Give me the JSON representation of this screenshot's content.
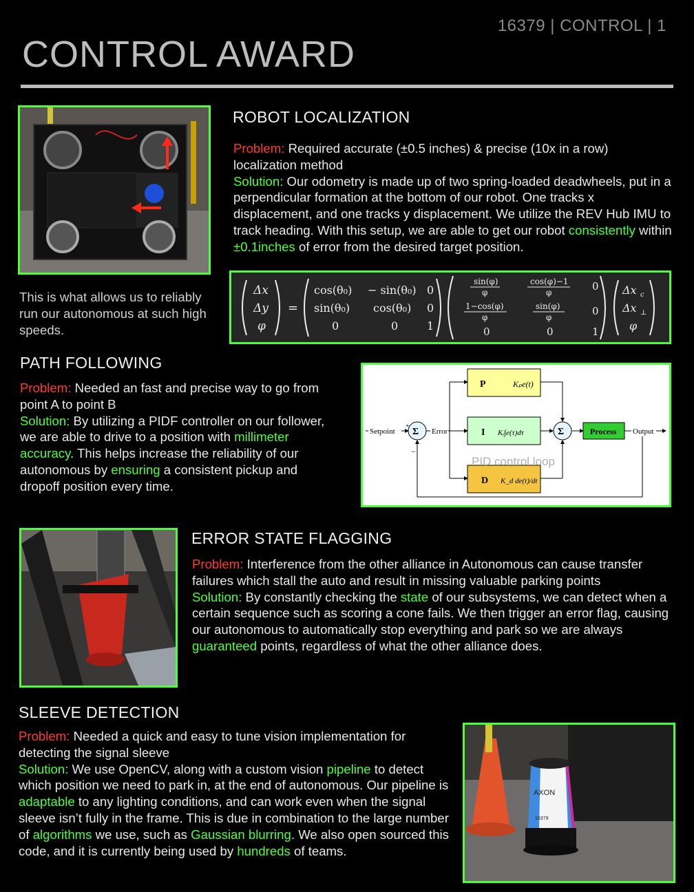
{
  "header": {
    "page_number": "16379 | CONTROL | 1",
    "title": "CONTROL AWARD"
  },
  "localization": {
    "heading": "ROBOT LOCALIZATION",
    "problem_label": "Problem:",
    "problem_text": " Required accurate (±0.5 inches) & precise (10x in a row) localization method",
    "solution_label": "Solution:",
    "solution_text_1": " Our odometry is made up of two spring-loaded deadwheels, put in a perpendicular formation at the bottom of our robot. One tracks x displacement, and one tracks y displacement. We utilize the REV Hub IMU to track heading. With this setup, we are able to get our robot ",
    "solution_hl_1": "consistently",
    "solution_text_2": " within ",
    "solution_hl_2": "±0.1inches",
    "solution_text_3": " of error from the desired target position.",
    "caption": "This is what allows us to reliably run our autonomous at such high speeds."
  },
  "path_following": {
    "heading": "PATH FOLLOWING",
    "problem_label": "Problem:",
    "problem_text": " Needed an fast and precise way to go from point A to point B",
    "solution_label": "Solution:",
    "solution_text_1": " By utilizing a PIDF controller on our follower, we are able to drive to a position with ",
    "solution_hl_1": "millimeter accuracy",
    "solution_text_2": ". This helps increase the reliability of our autonomous by ",
    "solution_hl_2": "ensuring",
    "solution_text_3": " a consistent pickup and dropoff position every time."
  },
  "pid_diagram": {
    "setpoint": "Setpoint",
    "error": "Error",
    "output": "Output",
    "process": "Process",
    "p": "P",
    "i": "I",
    "d": "D",
    "sum": "Σ",
    "plus": "+",
    "minus": "−",
    "overlay_caption": "PID control loop",
    "colors": {
      "p": "#ffff99",
      "i": "#ccffcc",
      "d": "#f5c542",
      "process": "#33cc33"
    }
  },
  "error_state": {
    "heading": "ERROR STATE FLAGGING",
    "problem_label": "Problem:",
    "problem_text": " Interference from the other alliance in Autonomous can cause transfer failures which stall the auto and result in missing valuable parking points",
    "solution_label": "Solution:",
    "solution_text_1": " By constantly checking the ",
    "solution_hl_1": "state",
    "solution_text_2": " of our subsystems, we can detect when a certain sequence such as scoring a cone fails. We then trigger an error flag, causing our autonomous to automatically stop everything and park so we are always ",
    "solution_hl_2": "guaranteed",
    "solution_text_3": " points, regardless of what the other alliance does."
  },
  "sleeve": {
    "heading": "SLEEVE DETECTION",
    "problem_label": "Problem:",
    "problem_text": " Needed a quick and easy to tune vision implementation for detecting the signal sleeve",
    "solution_label": "Solution:",
    "t1": " We use OpenCV, along with a custom vision ",
    "h1": "pipeline",
    "t2": " to detect which position we need to park in, at the end of autonomous. Our pipeline is ",
    "h2": "adaptable",
    "t3": " to any lighting conditions, and can work even when the signal sleeve isn’t fully in the frame. This is due in combination to the large number of ",
    "h3": "algorithms",
    "t4": " we use, such as ",
    "h4": "Gaussian blurring",
    "t5": ". We also open sourced this code, and it is currently being used by ",
    "h5": "hundreds",
    "t6": " of teams.",
    "sleeve_brand": "AXON",
    "sleeve_number": "16379"
  },
  "colors": {
    "accent_green": "#4cff3a",
    "problem_red": "#ff3b30"
  }
}
